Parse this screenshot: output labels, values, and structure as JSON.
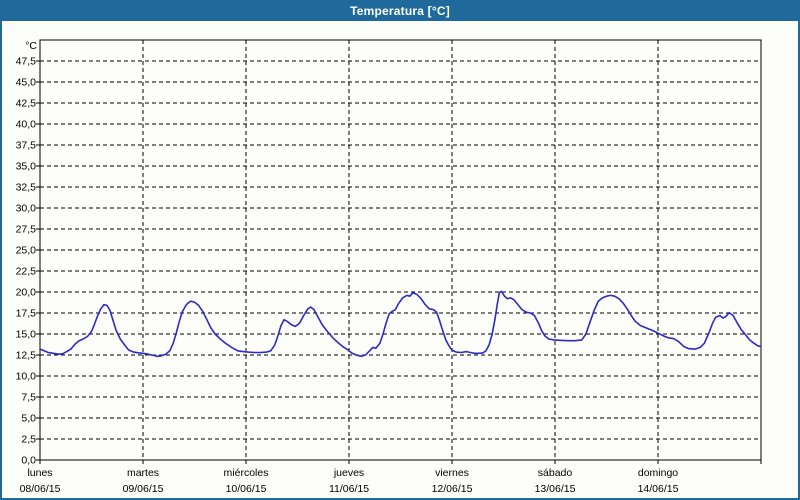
{
  "window": {
    "title": "Temperatura [°C]",
    "title_bar_color": "#1f6a9b",
    "border_color": "#1f6a9b",
    "background_color": "#fdfdfa"
  },
  "chart_data": {
    "type": "line",
    "title": "Temperatura [°C]",
    "grid": "dashed",
    "line_color": "#2b2bc8",
    "grid_color": "#000000",
    "y_axis": {
      "unit_label": "°C",
      "min": 0,
      "max": 50,
      "tick_step": 2.5,
      "ticks": [
        {
          "v": 0,
          "label": "0,0"
        },
        {
          "v": 2.5,
          "label": "2,5"
        },
        {
          "v": 5,
          "label": "5,0"
        },
        {
          "v": 7.5,
          "label": "7,5"
        },
        {
          "v": 10,
          "label": "10,0"
        },
        {
          "v": 12.5,
          "label": "12,5"
        },
        {
          "v": 15,
          "label": "15,0"
        },
        {
          "v": 17.5,
          "label": "17,5"
        },
        {
          "v": 20,
          "label": "20,0"
        },
        {
          "v": 22.5,
          "label": "22,5"
        },
        {
          "v": 25,
          "label": "25,0"
        },
        {
          "v": 27.5,
          "label": "27,5"
        },
        {
          "v": 30,
          "label": "30,0"
        },
        {
          "v": 32.5,
          "label": "32,5"
        },
        {
          "v": 35,
          "label": "35,0"
        },
        {
          "v": 37.5,
          "label": "37,5"
        },
        {
          "v": 40,
          "label": "40,0"
        },
        {
          "v": 42.5,
          "label": "42,5"
        },
        {
          "v": 45,
          "label": "45,0"
        },
        {
          "v": 47.5,
          "label": "47,5"
        }
      ]
    },
    "x_axis": {
      "span_days": 7,
      "days": [
        {
          "name": "lunes",
          "date": "08/06/15"
        },
        {
          "name": "martes",
          "date": "09/06/15"
        },
        {
          "name": "miércoles",
          "date": "10/06/15"
        },
        {
          "name": "jueves",
          "date": "11/06/15"
        },
        {
          "name": "viernes",
          "date": "12/06/15"
        },
        {
          "name": "sábado",
          "date": "13/06/15"
        },
        {
          "name": "domingo",
          "date": "14/06/15"
        }
      ]
    },
    "series": [
      {
        "name": "Temperatura",
        "color": "#2b2bc8",
        "points": [
          [
            0.0,
            13.2
          ],
          [
            0.04,
            13.0
          ],
          [
            0.08,
            12.8
          ],
          [
            0.13,
            12.7
          ],
          [
            0.18,
            12.6
          ],
          [
            0.22,
            12.65
          ],
          [
            0.26,
            12.9
          ],
          [
            0.3,
            13.2
          ],
          [
            0.34,
            13.8
          ],
          [
            0.38,
            14.2
          ],
          [
            0.42,
            14.4
          ],
          [
            0.46,
            14.7
          ],
          [
            0.5,
            15.3
          ],
          [
            0.53,
            16.2
          ],
          [
            0.56,
            17.2
          ],
          [
            0.59,
            18.0
          ],
          [
            0.62,
            18.5
          ],
          [
            0.65,
            18.4
          ],
          [
            0.68,
            17.8
          ],
          [
            0.71,
            16.6
          ],
          [
            0.74,
            15.4
          ],
          [
            0.78,
            14.4
          ],
          [
            0.82,
            13.7
          ],
          [
            0.86,
            13.1
          ],
          [
            0.91,
            12.85
          ],
          [
            0.96,
            12.75
          ],
          [
            1.0,
            12.7
          ],
          [
            1.05,
            12.6
          ],
          [
            1.1,
            12.45
          ],
          [
            1.14,
            12.35
          ],
          [
            1.18,
            12.4
          ],
          [
            1.22,
            12.6
          ],
          [
            1.26,
            13.0
          ],
          [
            1.29,
            13.8
          ],
          [
            1.32,
            15.0
          ],
          [
            1.35,
            16.4
          ],
          [
            1.38,
            17.6
          ],
          [
            1.42,
            18.5
          ],
          [
            1.46,
            18.9
          ],
          [
            1.5,
            18.8
          ],
          [
            1.54,
            18.4
          ],
          [
            1.58,
            17.7
          ],
          [
            1.62,
            16.7
          ],
          [
            1.66,
            15.7
          ],
          [
            1.7,
            15.0
          ],
          [
            1.75,
            14.4
          ],
          [
            1.8,
            13.9
          ],
          [
            1.86,
            13.4
          ],
          [
            1.92,
            13.0
          ],
          [
            1.97,
            12.9
          ],
          [
            2.02,
            12.85
          ],
          [
            2.08,
            12.8
          ],
          [
            2.14,
            12.8
          ],
          [
            2.2,
            12.85
          ],
          [
            2.24,
            13.0
          ],
          [
            2.28,
            13.7
          ],
          [
            2.31,
            14.8
          ],
          [
            2.34,
            16.0
          ],
          [
            2.37,
            16.7
          ],
          [
            2.4,
            16.5
          ],
          [
            2.44,
            16.1
          ],
          [
            2.48,
            15.9
          ],
          [
            2.52,
            16.3
          ],
          [
            2.56,
            17.2
          ],
          [
            2.6,
            18.0
          ],
          [
            2.63,
            18.2
          ],
          [
            2.66,
            17.9
          ],
          [
            2.7,
            17.0
          ],
          [
            2.74,
            16.1
          ],
          [
            2.79,
            15.3
          ],
          [
            2.84,
            14.6
          ],
          [
            2.89,
            14.0
          ],
          [
            2.94,
            13.5
          ],
          [
            2.99,
            13.1
          ],
          [
            3.03,
            12.7
          ],
          [
            3.08,
            12.45
          ],
          [
            3.12,
            12.35
          ],
          [
            3.16,
            12.5
          ],
          [
            3.2,
            13.0
          ],
          [
            3.23,
            13.4
          ],
          [
            3.26,
            13.3
          ],
          [
            3.3,
            13.9
          ],
          [
            3.33,
            15.0
          ],
          [
            3.36,
            16.3
          ],
          [
            3.39,
            17.4
          ],
          [
            3.42,
            17.7
          ],
          [
            3.45,
            17.9
          ],
          [
            3.48,
            18.6
          ],
          [
            3.52,
            19.3
          ],
          [
            3.56,
            19.6
          ],
          [
            3.59,
            19.5
          ],
          [
            3.62,
            19.9
          ],
          [
            3.66,
            19.7
          ],
          [
            3.7,
            19.2
          ],
          [
            3.74,
            18.5
          ],
          [
            3.78,
            18.0
          ],
          [
            3.82,
            17.9
          ],
          [
            3.85,
            17.6
          ],
          [
            3.88,
            16.6
          ],
          [
            3.91,
            15.4
          ],
          [
            3.94,
            14.3
          ],
          [
            3.97,
            13.6
          ],
          [
            4.0,
            13.1
          ],
          [
            4.04,
            12.85
          ],
          [
            4.09,
            12.8
          ],
          [
            4.14,
            12.9
          ],
          [
            4.18,
            12.8
          ],
          [
            4.22,
            12.7
          ],
          [
            4.26,
            12.7
          ],
          [
            4.3,
            12.75
          ],
          [
            4.33,
            13.0
          ],
          [
            4.36,
            13.7
          ],
          [
            4.39,
            15.0
          ],
          [
            4.42,
            17.0
          ],
          [
            4.44,
            18.6
          ],
          [
            4.46,
            19.9
          ],
          [
            4.48,
            20.1
          ],
          [
            4.51,
            19.5
          ],
          [
            4.54,
            19.2
          ],
          [
            4.57,
            19.3
          ],
          [
            4.6,
            19.1
          ],
          [
            4.64,
            18.5
          ],
          [
            4.68,
            17.9
          ],
          [
            4.72,
            17.6
          ],
          [
            4.76,
            17.5
          ],
          [
            4.8,
            17.2
          ],
          [
            4.84,
            16.3
          ],
          [
            4.87,
            15.4
          ],
          [
            4.9,
            14.8
          ],
          [
            4.94,
            14.4
          ],
          [
            4.99,
            14.3
          ],
          [
            5.05,
            14.25
          ],
          [
            5.12,
            14.2
          ],
          [
            5.19,
            14.2
          ],
          [
            5.26,
            14.3
          ],
          [
            5.3,
            15.0
          ],
          [
            5.34,
            16.4
          ],
          [
            5.38,
            17.8
          ],
          [
            5.42,
            18.9
          ],
          [
            5.46,
            19.3
          ],
          [
            5.5,
            19.5
          ],
          [
            5.54,
            19.6
          ],
          [
            5.58,
            19.5
          ],
          [
            5.62,
            19.2
          ],
          [
            5.66,
            18.7
          ],
          [
            5.7,
            18.0
          ],
          [
            5.74,
            17.2
          ],
          [
            5.78,
            16.5
          ],
          [
            5.83,
            16.0
          ],
          [
            5.89,
            15.7
          ],
          [
            5.95,
            15.4
          ],
          [
            6.0,
            15.1
          ],
          [
            6.05,
            14.8
          ],
          [
            6.1,
            14.55
          ],
          [
            6.15,
            14.45
          ],
          [
            6.2,
            14.1
          ],
          [
            6.25,
            13.5
          ],
          [
            6.3,
            13.25
          ],
          [
            6.36,
            13.2
          ],
          [
            6.41,
            13.4
          ],
          [
            6.45,
            13.9
          ],
          [
            6.49,
            15.0
          ],
          [
            6.53,
            16.3
          ],
          [
            6.56,
            17.0
          ],
          [
            6.6,
            17.2
          ],
          [
            6.63,
            16.9
          ],
          [
            6.66,
            17.1
          ],
          [
            6.69,
            17.55
          ],
          [
            6.73,
            17.2
          ],
          [
            6.77,
            16.3
          ],
          [
            6.81,
            15.5
          ],
          [
            6.85,
            14.9
          ],
          [
            6.89,
            14.3
          ],
          [
            6.93,
            13.9
          ],
          [
            6.97,
            13.6
          ],
          [
            7.0,
            13.5
          ]
        ]
      }
    ]
  }
}
